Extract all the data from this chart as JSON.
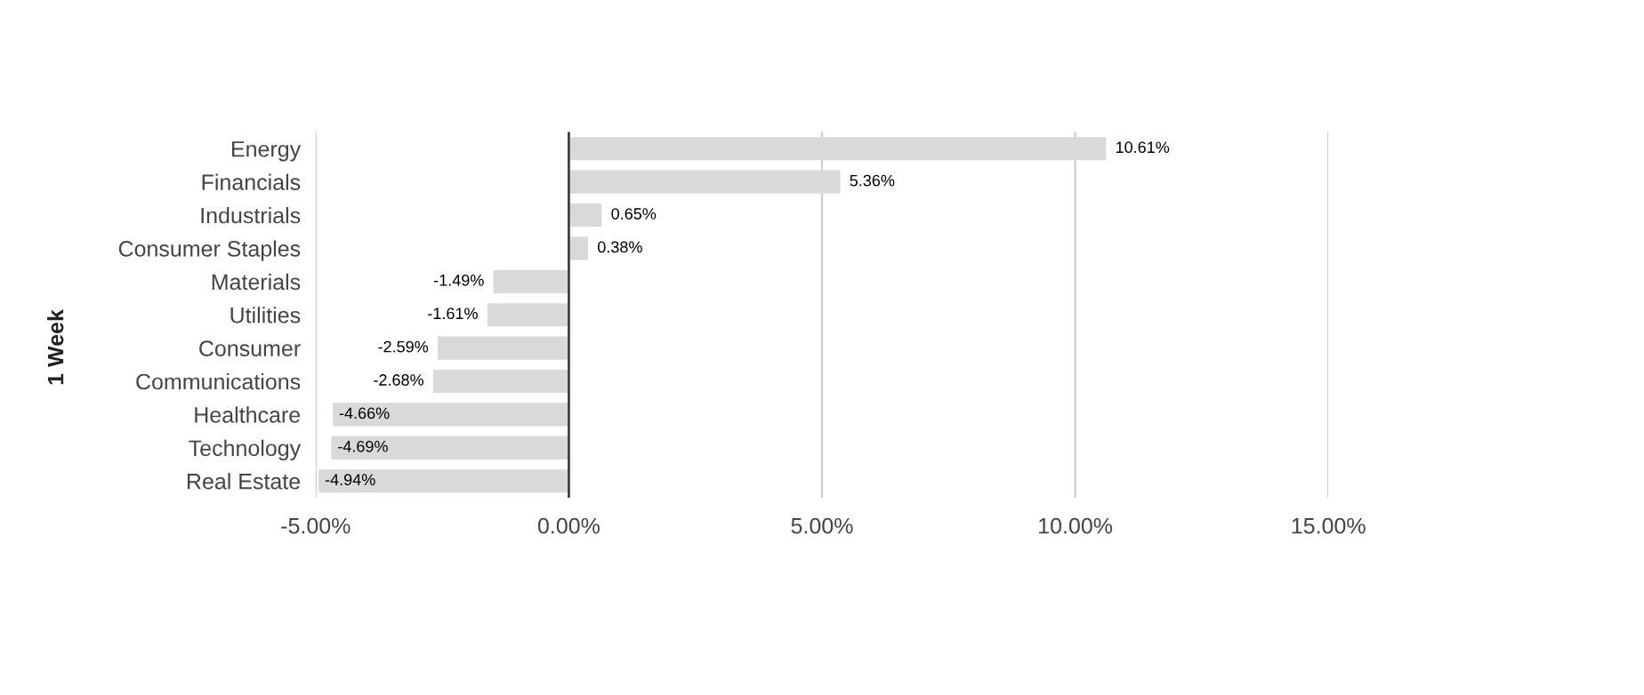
{
  "chart_data": {
    "type": "bar",
    "orientation": "horizontal",
    "ylabel": "1 Week",
    "categories": [
      "Energy",
      "Financials",
      "Industrials",
      "Consumer Staples",
      "Materials",
      "Utilities",
      "Consumer",
      "Communications",
      "Healthcare",
      "Technology",
      "Real Estate"
    ],
    "values": [
      10.61,
      5.36,
      0.65,
      0.38,
      -1.49,
      -1.61,
      -2.59,
      -2.68,
      -4.66,
      -4.69,
      -4.94
    ],
    "value_labels": [
      "10.61%",
      "5.36%",
      "0.65%",
      "0.38%",
      "-1.49%",
      "-1.61%",
      "-2.59%",
      "-2.68%",
      "-4.66%",
      "-4.69%",
      "-4.94%"
    ],
    "color": "#d9d9d9",
    "xlim": [
      -5,
      15
    ],
    "xticks": [
      {
        "value": -5,
        "label": "-5.00%"
      },
      {
        "value": 0,
        "label": "0.00%"
      },
      {
        "value": 5,
        "label": "5.00%"
      },
      {
        "value": 10,
        "label": "10.00%"
      },
      {
        "value": 15,
        "label": "15.00%"
      }
    ],
    "ref_lines": [
      {
        "axis": "x",
        "value": 0,
        "color": "#333333"
      }
    ],
    "grid": "x"
  }
}
